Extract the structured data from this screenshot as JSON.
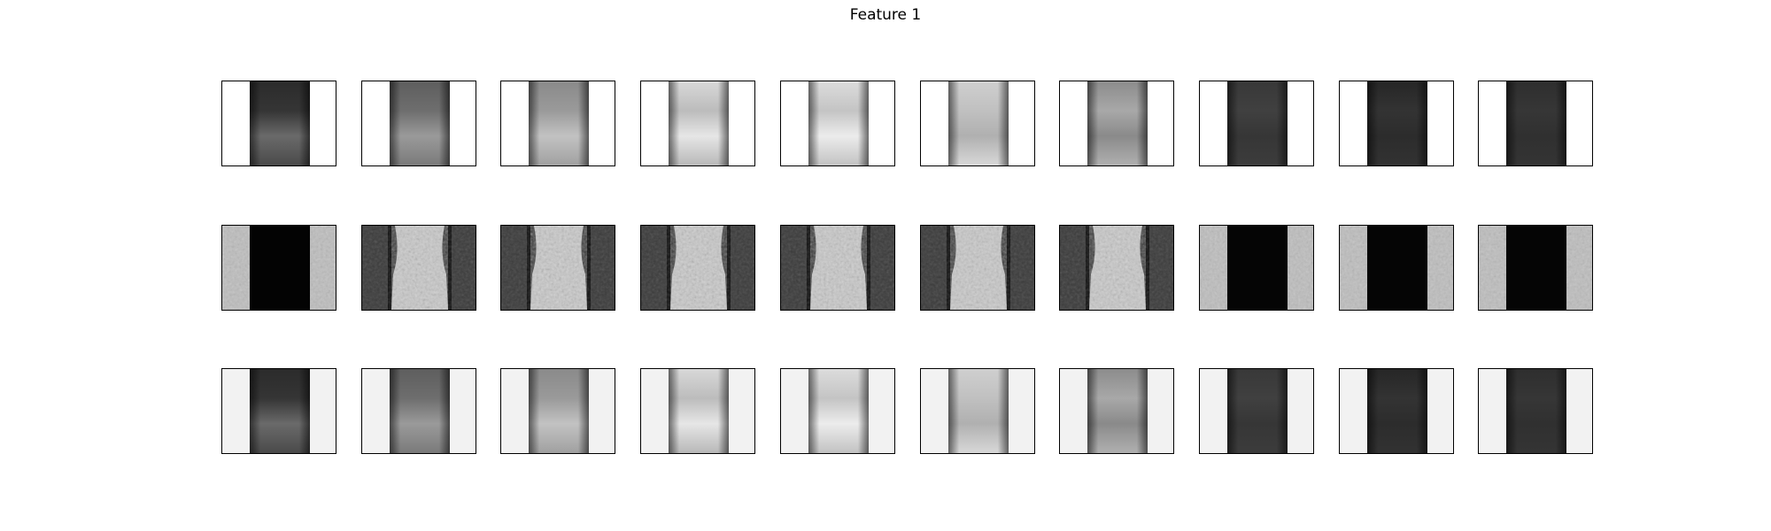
{
  "figure": {
    "title": "Feature 1"
  },
  "rows": [
    {
      "name": "row-1",
      "background": "#ffffff",
      "panels": [
        {
          "top": "#2b2b2b",
          "upper": "#353535",
          "lower": "#6a6a6a",
          "bottom": "#4a4a4a"
        },
        {
          "top": "#5e5e5e",
          "upper": "#6e6e6e",
          "lower": "#9a9a9a",
          "bottom": "#7a7a7a"
        },
        {
          "top": "#8a8a8a",
          "upper": "#9a9a9a",
          "lower": "#c2c2c2",
          "bottom": "#a0a0a0"
        },
        {
          "top": "#d8d8d8",
          "upper": "#bcbcbc",
          "lower": "#e6e6e6",
          "bottom": "#b8b8b8"
        },
        {
          "top": "#dcdcdc",
          "upper": "#c4c4c4",
          "lower": "#ececec",
          "bottom": "#c2c2c2"
        },
        {
          "top": "#cfcfcf",
          "upper": "#c0c0c0",
          "lower": "#b0b0b0",
          "bottom": "#d8d8d8"
        },
        {
          "top": "#8c8c8c",
          "upper": "#a8a8a8",
          "lower": "#8a8a8a",
          "bottom": "#b0b0b0"
        },
        {
          "top": "#383838",
          "upper": "#404040",
          "lower": "#363636",
          "bottom": "#3c3c3c"
        },
        {
          "top": "#262626",
          "upper": "#333333",
          "lower": "#2c2c2c",
          "bottom": "#323232"
        },
        {
          "top": "#2e2e2e",
          "upper": "#363636",
          "lower": "#303030",
          "bottom": "#343434"
        }
      ]
    },
    {
      "name": "row-2",
      "panels": [
        {
          "variant": "dark-center",
          "side": "#bdbdbd",
          "center": "#030303"
        },
        {
          "variant": "bright-center",
          "side": "#3a3a3a",
          "center": "#c8c8c8"
        },
        {
          "variant": "bright-center",
          "side": "#3a3a3a",
          "center": "#c8c8c8"
        },
        {
          "variant": "bright-center",
          "side": "#3a3a3a",
          "center": "#c8c8c8"
        },
        {
          "variant": "bright-center",
          "side": "#3a3a3a",
          "center": "#c8c8c8"
        },
        {
          "variant": "bright-center",
          "side": "#3a3a3a",
          "center": "#c8c8c8"
        },
        {
          "variant": "bright-center",
          "side": "#3a3a3a",
          "center": "#c8c8c8"
        },
        {
          "variant": "dark-center",
          "side": "#bdbdbd",
          "center": "#050505"
        },
        {
          "variant": "dark-center",
          "side": "#bdbdbd",
          "center": "#050505"
        },
        {
          "variant": "dark-center",
          "side": "#bdbdbd",
          "center": "#050505"
        }
      ]
    },
    {
      "name": "row-3",
      "background": "#f2f2f2",
      "panels": [
        {
          "top": "#2b2b2b",
          "upper": "#353535",
          "lower": "#6a6a6a",
          "bottom": "#4a4a4a"
        },
        {
          "top": "#5e5e5e",
          "upper": "#6e6e6e",
          "lower": "#9a9a9a",
          "bottom": "#7a7a7a"
        },
        {
          "top": "#8a8a8a",
          "upper": "#9a9a9a",
          "lower": "#c2c2c2",
          "bottom": "#a0a0a0"
        },
        {
          "top": "#d8d8d8",
          "upper": "#bcbcbc",
          "lower": "#e6e6e6",
          "bottom": "#b8b8b8"
        },
        {
          "top": "#dcdcdc",
          "upper": "#c4c4c4",
          "lower": "#ececec",
          "bottom": "#c2c2c2"
        },
        {
          "top": "#cfcfcf",
          "upper": "#c0c0c0",
          "lower": "#b0b0b0",
          "bottom": "#d8d8d8"
        },
        {
          "top": "#8c8c8c",
          "upper": "#a8a8a8",
          "lower": "#8a8a8a",
          "bottom": "#b0b0b0"
        },
        {
          "top": "#383838",
          "upper": "#404040",
          "lower": "#363636",
          "bottom": "#3c3c3c"
        },
        {
          "top": "#262626",
          "upper": "#333333",
          "lower": "#2c2c2c",
          "bottom": "#323232"
        },
        {
          "top": "#2e2e2e",
          "upper": "#363636",
          "lower": "#303030",
          "bottom": "#343434"
        }
      ]
    }
  ]
}
